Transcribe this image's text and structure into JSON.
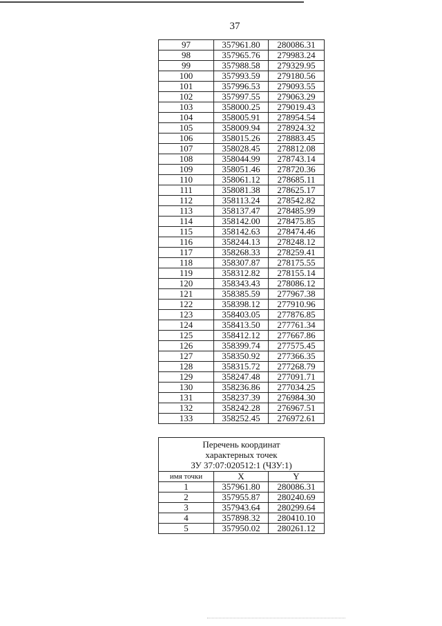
{
  "page_number": "37",
  "table1": {
    "rows": [
      [
        "97",
        "357961.80",
        "280086.31"
      ],
      [
        "98",
        "357965.76",
        "279983.24"
      ],
      [
        "99",
        "357988.58",
        "279329.95"
      ],
      [
        "100",
        "357993.59",
        "279180.56"
      ],
      [
        "101",
        "357996.53",
        "279093.55"
      ],
      [
        "102",
        "357997.55",
        "279063.29"
      ],
      [
        "103",
        "358000.25",
        "279019.43"
      ],
      [
        "104",
        "358005.91",
        "278954.54"
      ],
      [
        "105",
        "358009.94",
        "278924.32"
      ],
      [
        "106",
        "358015.26",
        "278883.45"
      ],
      [
        "107",
        "358028.45",
        "278812.08"
      ],
      [
        "108",
        "358044.99",
        "278743.14"
      ],
      [
        "109",
        "358051.46",
        "278720.36"
      ],
      [
        "110",
        "358061.12",
        "278685.11"
      ],
      [
        "111",
        "358081.38",
        "278625.17"
      ],
      [
        "112",
        "358113.24",
        "278542.82"
      ],
      [
        "113",
        "358137.47",
        "278485.99"
      ],
      [
        "114",
        "358142.00",
        "278475.85"
      ],
      [
        "115",
        "358142.63",
        "278474.46"
      ],
      [
        "116",
        "358244.13",
        "278248.12"
      ],
      [
        "117",
        "358268.33",
        "278259.41"
      ],
      [
        "118",
        "358307.87",
        "278175.55"
      ],
      [
        "119",
        "358312.82",
        "278155.14"
      ],
      [
        "120",
        "358343.43",
        "278086.12"
      ],
      [
        "121",
        "358385.59",
        "277967.38"
      ],
      [
        "122",
        "358398.12",
        "277910.96"
      ],
      [
        "123",
        "358403.05",
        "277876.85"
      ],
      [
        "124",
        "358413.50",
        "277761.34"
      ],
      [
        "125",
        "358412.12",
        "277667.86"
      ],
      [
        "126",
        "358399.74",
        "277575.45"
      ],
      [
        "127",
        "358350.92",
        "277366.35"
      ],
      [
        "128",
        "358315.72",
        "277268.79"
      ],
      [
        "129",
        "358247.48",
        "277091.71"
      ],
      [
        "130",
        "358236.86",
        "277034.25"
      ],
      [
        "131",
        "358237.39",
        "276984.30"
      ],
      [
        "132",
        "358242.28",
        "276967.51"
      ],
      [
        "133",
        "358252.45",
        "276972.61"
      ]
    ]
  },
  "table2": {
    "caption": [
      "Перечень координат",
      "характерных точек",
      "ЗУ 37:07:020512:1 (ЧЗУ:1)"
    ],
    "headers": [
      "имя точки",
      "X",
      "Y"
    ],
    "rows": [
      [
        "1",
        "357961.80",
        "280086.31"
      ],
      [
        "2",
        "357955.87",
        "280240.69"
      ],
      [
        "3",
        "357943.64",
        "280299.64"
      ],
      [
        "4",
        "357898.32",
        "280410.10"
      ],
      [
        "5",
        "357950.02",
        "280261.12"
      ]
    ]
  }
}
